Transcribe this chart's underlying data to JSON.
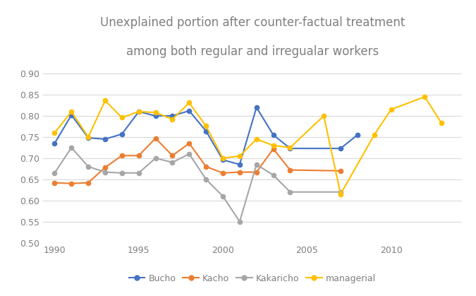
{
  "title_line1": "Unexplained portion after counter-factual treatment",
  "title_line2": "among both regular and irregualar workers",
  "title_color": "#7f7f7f",
  "years_bucho": [
    1990,
    1991,
    1992,
    1993,
    1994,
    1995,
    1996,
    1997,
    1998,
    1999,
    2000,
    2001,
    2002,
    2003,
    2004,
    2007,
    2008
  ],
  "values_bucho": [
    0.735,
    0.802,
    0.748,
    0.745,
    0.757,
    0.81,
    0.8,
    0.8,
    0.812,
    0.764,
    0.696,
    0.685,
    0.82,
    0.755,
    0.723,
    0.723,
    0.755
  ],
  "years_kacho": [
    1990,
    1991,
    1992,
    1993,
    1994,
    1995,
    1996,
    1997,
    1998,
    1999,
    2000,
    2001,
    2002,
    2003,
    2004,
    2007
  ],
  "values_kacho": [
    0.642,
    0.64,
    0.642,
    0.678,
    0.706,
    0.706,
    0.747,
    0.706,
    0.735,
    0.68,
    0.665,
    0.667,
    0.667,
    0.722,
    0.672,
    0.67
  ],
  "years_kakaricho": [
    1990,
    1991,
    1992,
    1993,
    1994,
    1995,
    1996,
    1997,
    1998,
    1999,
    2000,
    2001,
    2002,
    2003,
    2004,
    2007
  ],
  "values_kakaricho": [
    0.665,
    0.725,
    0.68,
    0.667,
    0.665,
    0.665,
    0.7,
    0.69,
    0.71,
    0.65,
    0.61,
    0.55,
    0.685,
    0.66,
    0.62,
    0.62
  ],
  "years_managerial": [
    1990,
    1991,
    1992,
    1993,
    1994,
    1995,
    1996,
    1997,
    1998,
    1999,
    2000,
    2001,
    2002,
    2003,
    2004,
    2006,
    2007,
    2009,
    2010,
    2012,
    2013
  ],
  "values_managerial": [
    0.76,
    0.81,
    0.75,
    0.836,
    0.796,
    0.81,
    0.808,
    0.792,
    0.831,
    0.776,
    0.7,
    0.705,
    0.745,
    0.73,
    0.725,
    0.8,
    0.615,
    0.755,
    0.815,
    0.845,
    0.783
  ],
  "color_bucho": "#4472c4",
  "color_kacho": "#ed7d31",
  "color_kakaricho": "#a6a6a6",
  "color_managerial": "#ffc000",
  "ylim": [
    0.5,
    0.92
  ],
  "yticks": [
    0.5,
    0.55,
    0.6,
    0.65,
    0.7,
    0.75,
    0.8,
    0.85,
    0.9
  ],
  "xlim": [
    1989.3,
    2014.2
  ],
  "xticks": [
    1990,
    1995,
    2000,
    2005,
    2010
  ],
  "legend_labels": [
    "Bucho",
    "Kacho",
    "Kakaricho",
    "managerial"
  ],
  "background_color": "#ffffff",
  "grid_color": "#d9d9d9",
  "tick_color": "#7f7f7f",
  "marker_size": 4.5,
  "line_width": 1.5
}
